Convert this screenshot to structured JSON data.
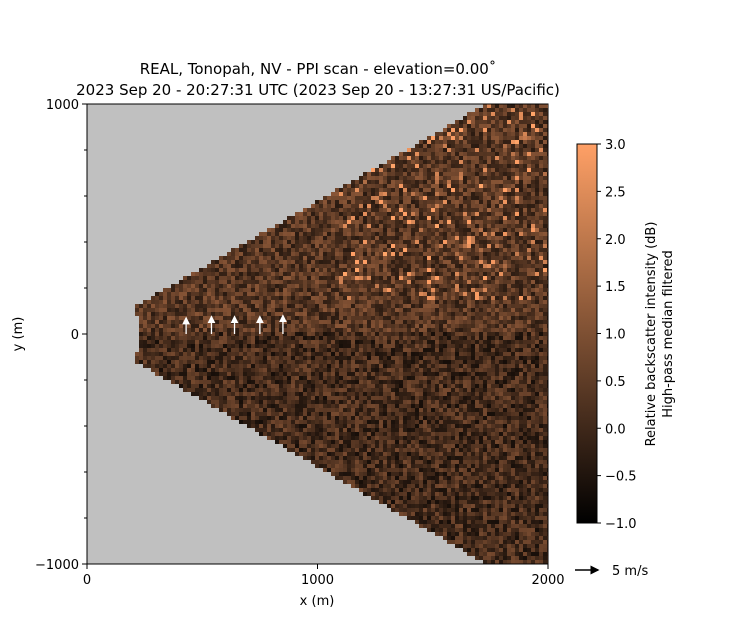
{
  "chart_data": {
    "type": "heatmap",
    "title_line1": "REAL, Tonopah, NV - PPI scan - elevation=0.00˚",
    "title_line2": "2023 Sep 20 - 20:27:31 UTC (2023 Sep 20 - 13:27:31 US/Pacific)",
    "xlabel": "x (m)",
    "ylabel": "y (m)",
    "xlim": [
      0,
      2000
    ],
    "ylim": [
      -1000,
      1000
    ],
    "x_ticks": [
      0,
      1000,
      2000
    ],
    "y_ticks": [
      -1000,
      0,
      1000
    ],
    "x_tick_labels": [
      "0",
      "1000",
      "2000"
    ],
    "y_tick_labels": [
      "−1000",
      "0",
      "1000"
    ],
    "scan": {
      "min_range_m": 230,
      "max_range_m": 2000,
      "azimuth_half_width_deg": 30
    },
    "background_color": "#c0c0c0",
    "colorbar": {
      "label_line1": "Relative backscatter intensity (dB)",
      "label_line2": "High-pass median filtered",
      "min": -1.0,
      "max": 3.0,
      "ticks": [
        -1.0,
        -0.5,
        0.0,
        0.5,
        1.0,
        1.5,
        2.0,
        2.5,
        3.0
      ],
      "tick_labels": [
        "−1.0",
        "−0.5",
        "0.0",
        "0.5",
        "1.0",
        "1.5",
        "2.0",
        "2.5",
        "3.0"
      ],
      "colormap": "copper"
    },
    "quiver_key": {
      "label": "5 m/s",
      "speed": 5
    },
    "wind_vectors": [
      {
        "x": 430,
        "y": 0,
        "u": 0.0,
        "v": 3.5
      },
      {
        "x": 540,
        "y": 0,
        "u": 0.0,
        "v": 3.8
      },
      {
        "x": 640,
        "y": 0,
        "u": 0.0,
        "v": 3.8
      },
      {
        "x": 750,
        "y": 0,
        "u": 0.0,
        "v": 3.8
      },
      {
        "x": 850,
        "y": 0,
        "u": 0.0,
        "v": 4.0
      }
    ]
  }
}
